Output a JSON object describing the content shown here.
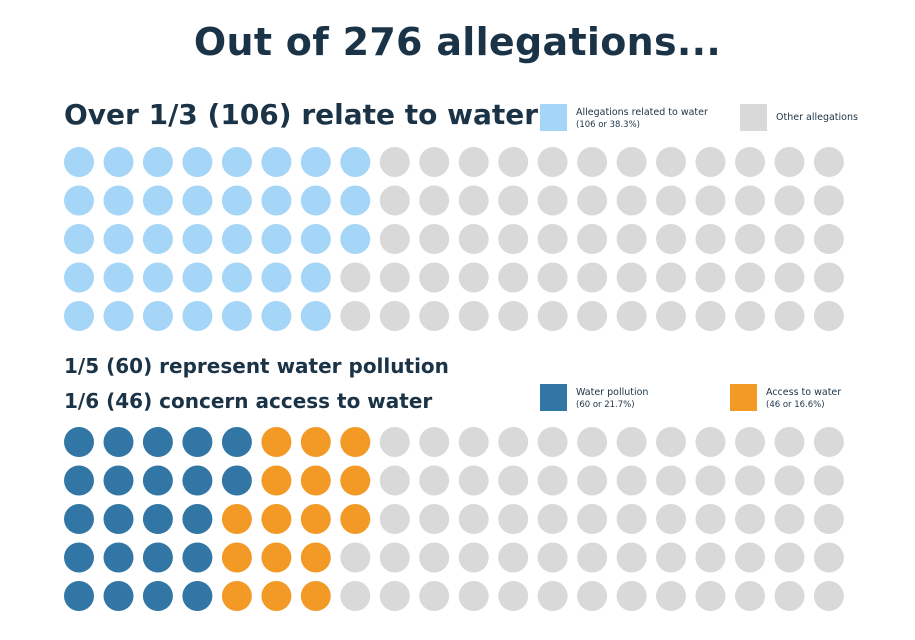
{
  "title": "Out of 276 allegations...",
  "heading_water": "Over 1/3 (106) relate to water",
  "heading_pollution": "1/5 (60) represent water pollution",
  "heading_access": "1/6 (46) concern access to water",
  "legend_top": [
    {
      "label": "Allegations related to water",
      "sub": "(106 or 38.3%)",
      "color": "#a5d5f7"
    },
    {
      "label": "Other allegations",
      "sub": "",
      "color": "#d9d9d9"
    }
  ],
  "legend_bottom": [
    {
      "label": "Water pollution",
      "sub": "(60 or 21.7%)",
      "color": "#3176a5"
    },
    {
      "label": "Access to water",
      "sub": "(46 or 16.6%)",
      "color": "#f39a26"
    }
  ],
  "chart_data": [
    {
      "type": "waffle",
      "rows": 5,
      "columns": 20,
      "series": [
        {
          "name": "Allegations related to water",
          "cells": 38,
          "color": "#a5d5f7"
        },
        {
          "name": "Other allegations",
          "cells": 62,
          "color": "#d9d9d9"
        }
      ]
    },
    {
      "type": "waffle",
      "rows": 5,
      "columns": 20,
      "series": [
        {
          "name": "Water pollution",
          "cells": 22,
          "color": "#3176a5"
        },
        {
          "name": "Access to water",
          "cells": 16,
          "color": "#f39a26"
        },
        {
          "name": "Other allegations",
          "cells": 62,
          "color": "#d9d9d9"
        }
      ]
    }
  ]
}
